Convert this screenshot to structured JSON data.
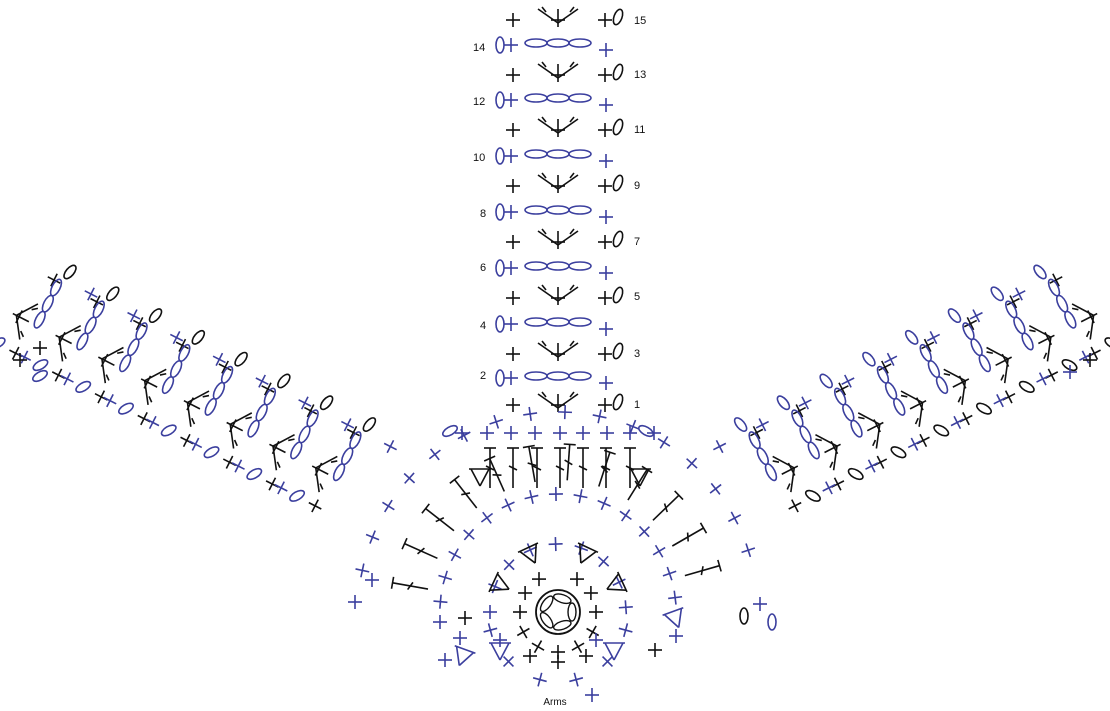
{
  "diagram": {
    "caption": "Arms",
    "row_labels": [
      "1",
      "2",
      "3",
      "4",
      "5",
      "6",
      "7",
      "8",
      "9",
      "10",
      "11",
      "12",
      "13",
      "14",
      "15"
    ],
    "colors": {
      "odd_rows": "#111111",
      "even_rows": "#3b3f9e",
      "background": "#ffffff"
    },
    "symbols": [
      "single-crochet",
      "chain-stitch",
      "double-crochet",
      "sc2tog-decrease",
      "magic-ring"
    ]
  }
}
